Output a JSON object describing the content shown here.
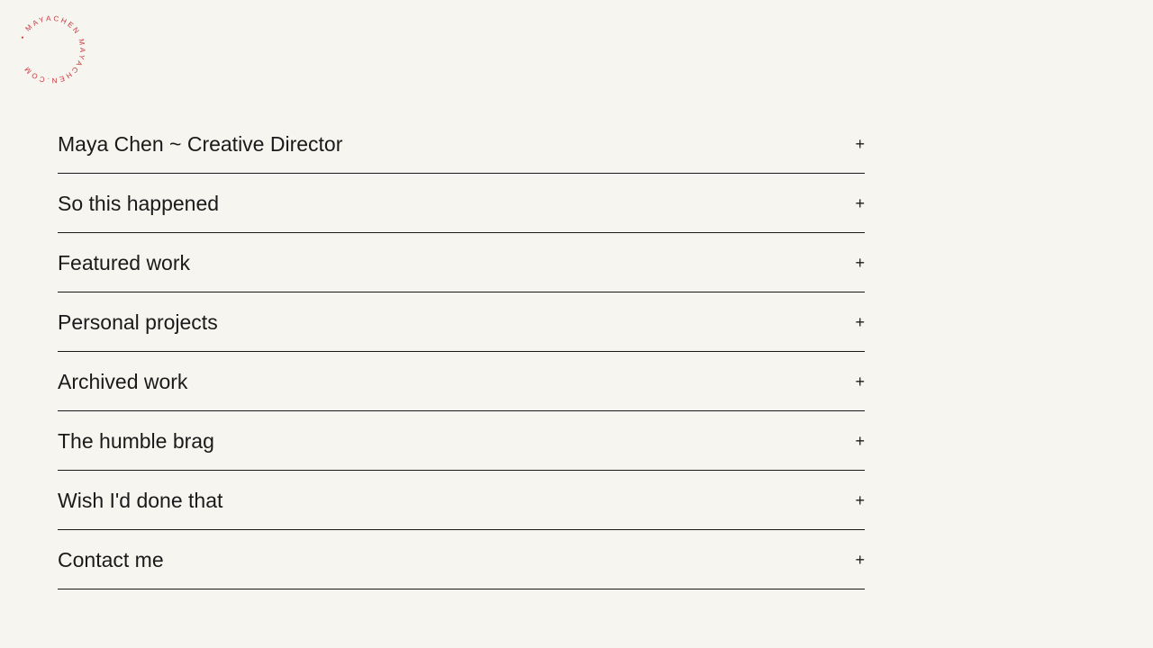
{
  "logo": {
    "circular_text": "• MAYACHEN MAYACHEN.COM",
    "color": "#c8363d"
  },
  "menu": {
    "expand_icon": "+",
    "items": [
      {
        "label": "Maya Chen ~ Creative Director"
      },
      {
        "label": "So this happened"
      },
      {
        "label": "Featured work"
      },
      {
        "label": "Personal projects"
      },
      {
        "label": "Archived work"
      },
      {
        "label": "The humble brag"
      },
      {
        "label": "Wish I'd done that"
      },
      {
        "label": "Contact me"
      }
    ]
  }
}
